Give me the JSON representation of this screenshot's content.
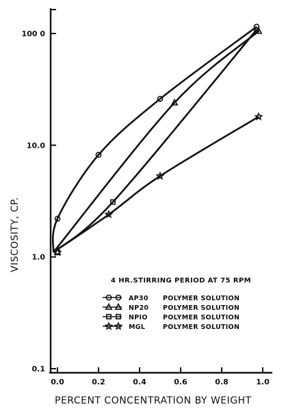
{
  "chart_data": {
    "type": "line",
    "title": "",
    "xlabel": "PERCENT CONCENTRATION BY WEIGHT",
    "ylabel": "VISCOSITY, CP.",
    "xlim": [
      0.0,
      1.0
    ],
    "ylim": [
      0.1,
      100.0
    ],
    "yscale": "log",
    "grid": false,
    "x_ticks": [
      0.0,
      0.2,
      0.4,
      0.6,
      0.8,
      1.0
    ],
    "x_tick_labels": [
      "0.0",
      "0.2",
      "0.4",
      "0.6",
      "0.8",
      "1.0"
    ],
    "y_ticks": [
      0.1,
      1.0,
      10.0,
      100.0
    ],
    "y_tick_labels": [
      "0.1",
      "1.0",
      "10.0",
      "100 0"
    ],
    "annotation": "4 HR.STIRRING PERIOD AT 75 RPM",
    "legend_position": "center-right",
    "series": [
      {
        "name": "AP30",
        "legend_label": "POLYMER SOLUTION",
        "legend_symbol": "-O-O",
        "marker": "circle",
        "points": [
          [
            0.0,
            1.1
          ],
          [
            0.0,
            2.2
          ],
          [
            0.2,
            8.2
          ],
          [
            0.5,
            26.0
          ],
          [
            0.97,
            115.0
          ]
        ]
      },
      {
        "name": "NP20",
        "legend_label": "POLYMER SOLUTION",
        "legend_symbol": "-Δ-Δ",
        "marker": "triangle",
        "points": [
          [
            0.0,
            1.1
          ],
          [
            0.57,
            24.0
          ],
          [
            0.98,
            105.0
          ]
        ]
      },
      {
        "name": "NPIO",
        "legend_label": "POLYMER SOLUTION",
        "legend_symbol": "-▫-▫",
        "marker": "square",
        "points": [
          [
            0.0,
            1.1
          ],
          [
            0.27,
            3.1
          ],
          [
            0.97,
            108.0
          ]
        ]
      },
      {
        "name": "MGL",
        "legend_label": "POLYMER SOLUTION",
        "legend_symbol": "-★-★",
        "marker": "star",
        "points": [
          [
            0.0,
            1.1
          ],
          [
            0.25,
            2.4
          ],
          [
            0.5,
            5.3
          ],
          [
            0.98,
            18.0
          ]
        ]
      }
    ]
  }
}
